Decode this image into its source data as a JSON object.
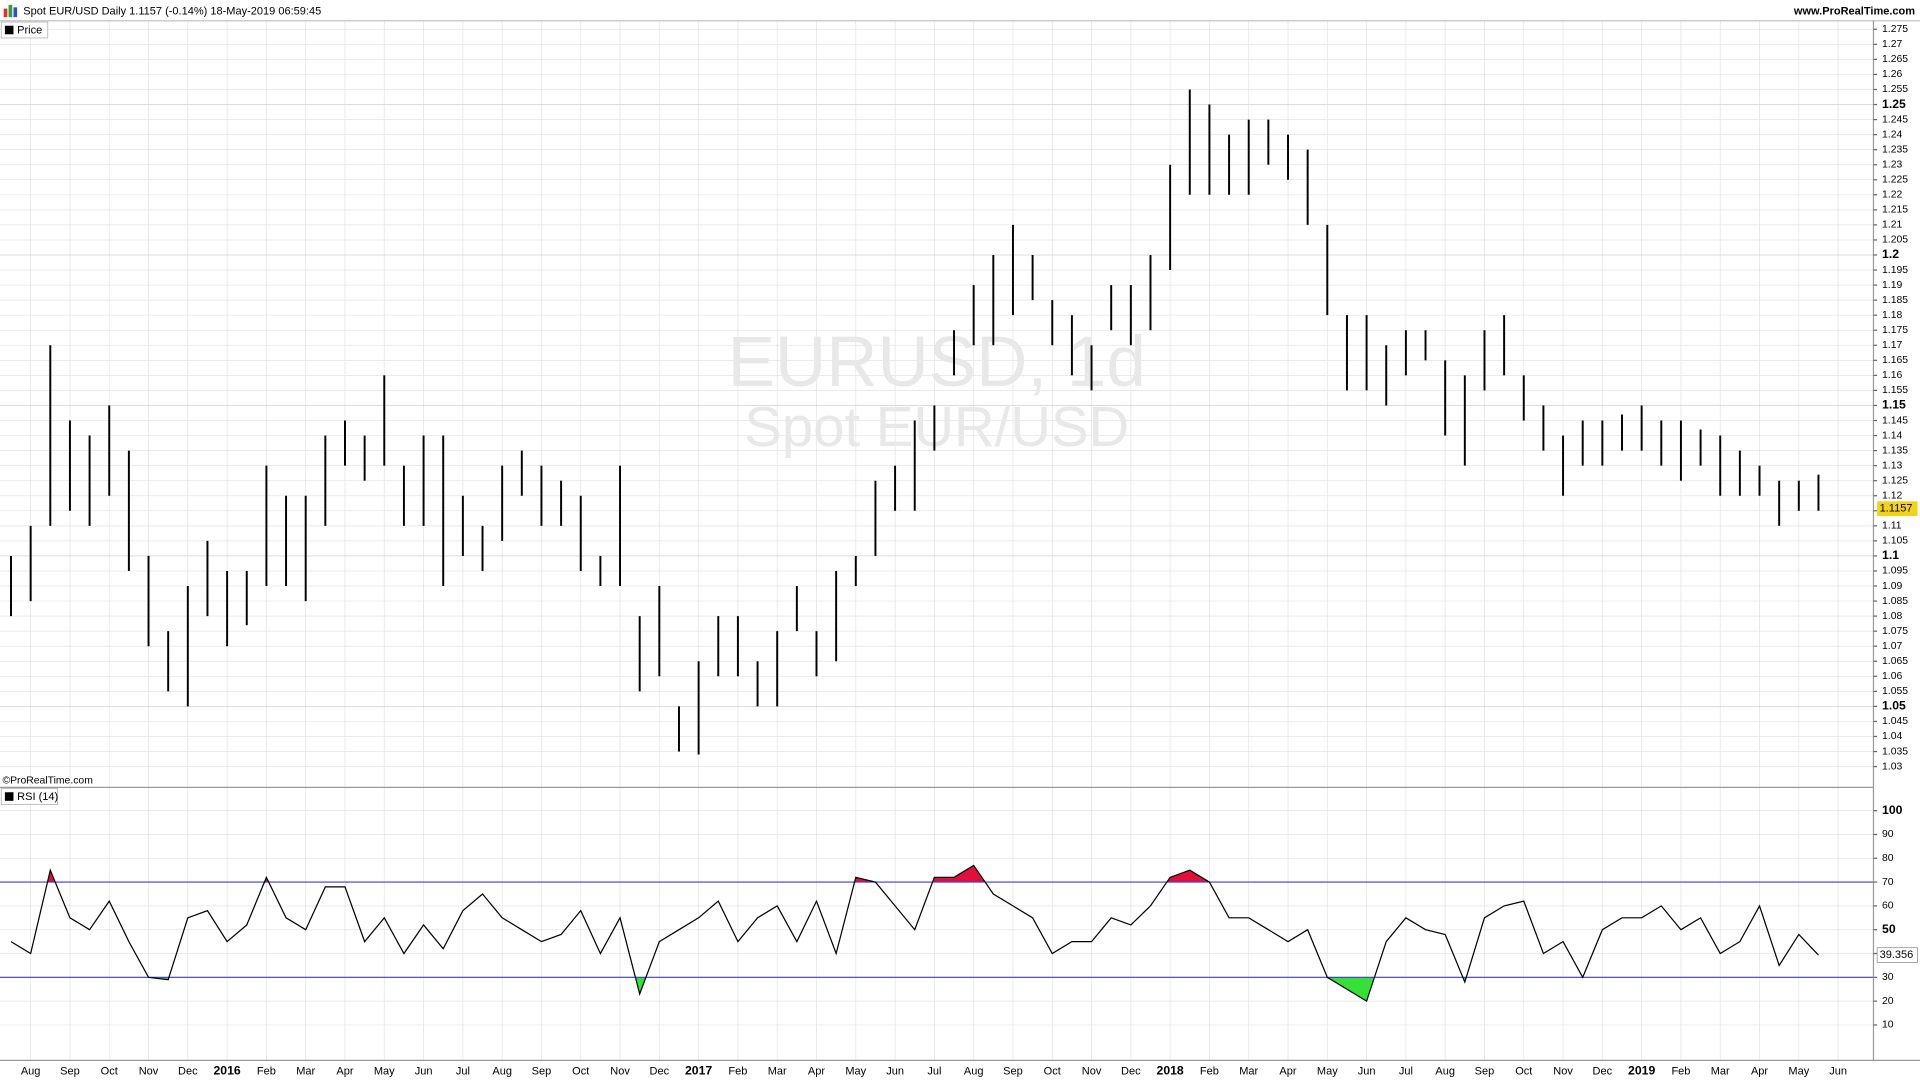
{
  "chart_data": [
    {
      "type": "ohlc",
      "title": "Spot EUR/USD Daily 1.1157 (-0.14%) 18-May-2019 06:59:45",
      "source": "www.ProRealTime.com",
      "copyright": "©ProRealTime.com",
      "name": "Price",
      "color": "#000000",
      "annotations": [
        "EURUSD, 1d",
        "Spot EUR/USD"
      ],
      "last_value": 1.1157,
      "last_color": "#f2d21a",
      "x": [
        -0.5,
        0,
        0.5,
        1,
        1.5,
        2,
        2.5,
        3,
        3.5,
        4,
        4.5,
        5,
        5.5,
        6,
        6.5,
        7,
        7.5,
        8,
        8.5,
        9,
        9.5,
        10,
        10.5,
        11,
        11.5,
        12,
        12.5,
        13,
        13.5,
        14,
        14.5,
        15,
        15.5,
        16,
        16.5,
        17,
        17.5,
        18,
        18.5,
        19,
        19.5,
        20,
        20.5,
        21,
        21.5,
        22,
        22.5,
        23,
        23.5,
        24,
        24.5,
        25,
        25.5,
        26,
        26.5,
        27,
        27.5,
        28,
        28.5,
        29,
        29.5,
        30,
        30.5,
        31,
        31.5,
        32,
        32.5,
        33,
        33.5,
        34,
        34.5,
        35,
        35.5,
        36,
        36.5,
        37,
        37.5,
        38,
        38.5,
        39,
        39.5,
        40,
        40.5,
        41,
        41.5,
        42,
        42.5,
        43,
        43.5,
        44,
        44.5,
        45,
        45.5
      ],
      "high": [
        1.1,
        1.11,
        1.17,
        1.145,
        1.14,
        1.15,
        1.135,
        1.1,
        1.075,
        1.09,
        1.105,
        1.095,
        1.095,
        1.13,
        1.12,
        1.12,
        1.14,
        1.145,
        1.14,
        1.16,
        1.13,
        1.14,
        1.14,
        1.12,
        1.11,
        1.13,
        1.135,
        1.13,
        1.125,
        1.12,
        1.1,
        1.13,
        1.08,
        1.09,
        1.05,
        1.065,
        1.08,
        1.08,
        1.065,
        1.075,
        1.09,
        1.075,
        1.095,
        1.1,
        1.125,
        1.13,
        1.145,
        1.15,
        1.175,
        1.19,
        1.2,
        1.21,
        1.2,
        1.185,
        1.18,
        1.17,
        1.19,
        1.19,
        1.2,
        1.23,
        1.255,
        1.25,
        1.24,
        1.245,
        1.245,
        1.24,
        1.235,
        1.21,
        1.18,
        1.18,
        1.17,
        1.175,
        1.175,
        1.165,
        1.16,
        1.175,
        1.18,
        1.16,
        1.15,
        1.14,
        1.145,
        1.145,
        1.147,
        1.15,
        1.145,
        1.145,
        1.142,
        1.14,
        1.135,
        1.13,
        1.125,
        1.125,
        1.127
      ],
      "low": [
        1.08,
        1.085,
        1.11,
        1.115,
        1.11,
        1.12,
        1.095,
        1.07,
        1.055,
        1.05,
        1.08,
        1.07,
        1.077,
        1.09,
        1.09,
        1.085,
        1.11,
        1.13,
        1.125,
        1.13,
        1.11,
        1.11,
        1.09,
        1.1,
        1.095,
        1.105,
        1.12,
        1.11,
        1.11,
        1.095,
        1.09,
        1.09,
        1.055,
        1.06,
        1.035,
        1.034,
        1.06,
        1.06,
        1.05,
        1.05,
        1.075,
        1.06,
        1.065,
        1.09,
        1.1,
        1.115,
        1.115,
        1.135,
        1.16,
        1.17,
        1.17,
        1.18,
        1.185,
        1.17,
        1.16,
        1.155,
        1.175,
        1.17,
        1.175,
        1.195,
        1.22,
        1.22,
        1.22,
        1.22,
        1.23,
        1.225,
        1.21,
        1.18,
        1.155,
        1.155,
        1.15,
        1.16,
        1.165,
        1.14,
        1.13,
        1.155,
        1.16,
        1.145,
        1.135,
        1.12,
        1.13,
        1.13,
        1.135,
        1.135,
        1.13,
        1.125,
        1.13,
        1.12,
        1.12,
        1.12,
        1.11,
        1.115,
        1.115
      ],
      "xlim": [
        -0.78,
        46.9
      ],
      "ylim": [
        1.0231,
        1.2827
      ],
      "yticks": [
        1.03,
        1.035,
        1.04,
        1.045,
        1.05,
        1.055,
        1.06,
        1.065,
        1.07,
        1.075,
        1.08,
        1.085,
        1.09,
        1.095,
        1.1,
        1.105,
        1.11,
        1.115,
        1.12,
        1.125,
        1.13,
        1.135,
        1.14,
        1.145,
        1.15,
        1.155,
        1.16,
        1.165,
        1.17,
        1.175,
        1.18,
        1.185,
        1.19,
        1.195,
        1.2,
        1.205,
        1.21,
        1.215,
        1.22,
        1.225,
        1.23,
        1.235,
        1.24,
        1.245,
        1.25,
        1.255,
        1.26,
        1.265,
        1.27,
        1.275
      ],
      "grid": true
    },
    {
      "type": "line",
      "name": "RSI (14)",
      "color": "#000000",
      "levels": [
        70,
        30
      ],
      "level_color": "#3c3cd2",
      "overbought_color": "#e0103a",
      "oversold_color": "#36e036",
      "x": [
        -0.5,
        0,
        0.5,
        1,
        1.5,
        2,
        2.5,
        3,
        3.5,
        4,
        4.5,
        5,
        5.5,
        6,
        6.5,
        7,
        7.5,
        8,
        8.5,
        9,
        9.5,
        10,
        10.5,
        11,
        11.5,
        12,
        12.5,
        13,
        13.5,
        14,
        14.5,
        15,
        15.5,
        16,
        16.5,
        17,
        17.5,
        18,
        18.5,
        19,
        19.5,
        20,
        20.5,
        21,
        21.5,
        22,
        22.5,
        23,
        23.5,
        24,
        24.5,
        25,
        25.5,
        26,
        26.5,
        27,
        27.5,
        28,
        28.5,
        29,
        29.5,
        30,
        30.5,
        31,
        31.5,
        32,
        32.5,
        33,
        33.5,
        34,
        34.5,
        35,
        35.5,
        36,
        36.5,
        37,
        37.5,
        38,
        38.5,
        39,
        39.5,
        40,
        40.5,
        41,
        41.5,
        42,
        42.5,
        43,
        43.5,
        44,
        44.5,
        45,
        45.5
      ],
      "values": [
        45,
        40,
        75,
        55,
        50,
        62,
        45,
        30,
        29,
        55,
        58,
        45,
        52,
        72,
        55,
        50,
        68,
        68,
        45,
        55,
        40,
        52,
        42,
        58,
        65,
        55,
        50,
        45,
        48,
        58,
        40,
        55,
        23,
        45,
        50,
        55,
        62,
        45,
        55,
        60,
        45,
        62,
        40,
        72,
        70,
        60,
        50,
        72,
        72,
        77,
        65,
        60,
        55,
        40,
        45,
        45,
        55,
        52,
        60,
        72,
        75,
        70,
        55,
        55,
        50,
        45,
        50,
        30,
        25,
        20,
        45,
        55,
        50,
        48,
        28,
        55,
        60,
        62,
        40,
        45,
        30,
        50,
        55,
        55,
        60,
        50,
        55,
        40,
        45,
        60,
        35,
        48,
        39.356
      ],
      "xlim": [
        -0.78,
        46.9
      ],
      "ylim": [
        -4.9,
        109.8
      ],
      "yticks": [
        10,
        20,
        30,
        40,
        50,
        60,
        70,
        80,
        90,
        100
      ],
      "xticks": [
        {
          "value": 0,
          "label": "Aug"
        },
        {
          "value": 1,
          "label": "Sep"
        },
        {
          "value": 2,
          "label": "Oct"
        },
        {
          "value": 3,
          "label": "Nov"
        },
        {
          "value": 4,
          "label": "Dec"
        },
        {
          "value": 5,
          "label": "2016"
        },
        {
          "value": 6,
          "label": "Feb"
        },
        {
          "value": 7,
          "label": "Mar"
        },
        {
          "value": 8,
          "label": "Apr"
        },
        {
          "value": 9,
          "label": "May"
        },
        {
          "value": 10,
          "label": "Jun"
        },
        {
          "value": 11,
          "label": "Jul"
        },
        {
          "value": 12,
          "label": "Aug"
        },
        {
          "value": 13,
          "label": "Sep"
        },
        {
          "value": 14,
          "label": "Oct"
        },
        {
          "value": 15,
          "label": "Nov"
        },
        {
          "value": 16,
          "label": "Dec"
        },
        {
          "value": 17,
          "label": "2017"
        },
        {
          "value": 18,
          "label": "Feb"
        },
        {
          "value": 19,
          "label": "Mar"
        },
        {
          "value": 20,
          "label": "Apr"
        },
        {
          "value": 21,
          "label": "May"
        },
        {
          "value": 22,
          "label": "Jun"
        },
        {
          "value": 23,
          "label": "Jul"
        },
        {
          "value": 24,
          "label": "Aug"
        },
        {
          "value": 25,
          "label": "Sep"
        },
        {
          "value": 26,
          "label": "Oct"
        },
        {
          "value": 27,
          "label": "Nov"
        },
        {
          "value": 28,
          "label": "Dec"
        },
        {
          "value": 29,
          "label": "2018"
        },
        {
          "value": 30,
          "label": "Feb"
        },
        {
          "value": 31,
          "label": "Mar"
        },
        {
          "value": 32,
          "label": "Apr"
        },
        {
          "value": 33,
          "label": "May"
        },
        {
          "value": 34,
          "label": "Jun"
        },
        {
          "value": 35,
          "label": "Jul"
        },
        {
          "value": 36,
          "label": "Aug"
        },
        {
          "value": 37,
          "label": "Sep"
        },
        {
          "value": 38,
          "label": "Oct"
        },
        {
          "value": 39,
          "label": "Nov"
        },
        {
          "value": 40,
          "label": "Dec"
        },
        {
          "value": 41,
          "label": "2019"
        },
        {
          "value": 42,
          "label": "Feb"
        },
        {
          "value": 43,
          "label": "Mar"
        },
        {
          "value": 44,
          "label": "Apr"
        },
        {
          "value": 45,
          "label": "May"
        },
        {
          "value": 46,
          "label": "Jun"
        }
      ],
      "grid": true
    }
  ]
}
